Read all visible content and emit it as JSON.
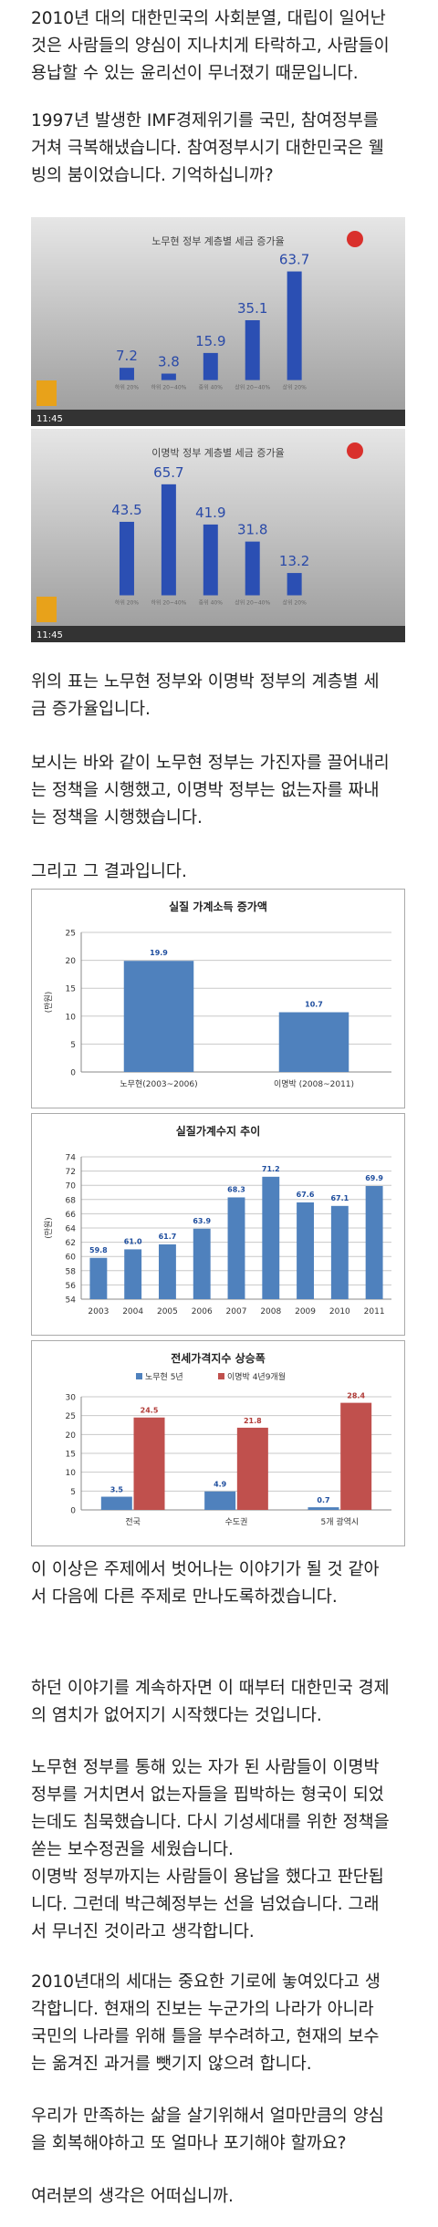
{
  "paragraphs": [
    [
      "2010년 대의 대한민국의 사회분열, 대립이 일어난",
      "것은 사람들의 양심이 지나치게 타락하고, 사람들이",
      "용납할 수 있는 윤리선이 무너졌기 때문입니다."
    ],
    [
      "1997년 발생한 IMF경제위기를 국민, 참여정부를",
      "거쳐 극복해냈습니다. 참여정부시기 대한민국은 웰",
      "빙의 붐이었습니다. 기억하십니까?"
    ],
    [
      "위의 표는 노무현 정부와 이명박 정부의 계층별 세",
      "금 증가율입니다."
    ],
    [
      "보시는 바와 같이 노무현 정부는 가진자를 끌어내리",
      "는 정책을 시행했고, 이명박 정부는 없는자를 짜내",
      "는 정책을 시행했습니다."
    ],
    [
      "그리고 그 결과입니다."
    ],
    [
      "이 이상은 주제에서 벗어나는 이야기가 될 것 같아",
      "서 다음에 다른 주제로 만나도록하겠습니다."
    ],
    [
      "하던 이야기를 계속하자면 이 때부터 대한민국 경제",
      "의 염치가 없어지기 시작했다는 것입니다."
    ],
    [
      "노무현 정부를 통해 있는 자가 된 사람들이 이명박",
      "정부를 거치면서 없는자들을 핍박하는 형국이 되었",
      "는데도 침묵했습니다. 다시 기성세대를 위한 정책을",
      "쏟는 보수정권을 세웠습니다.",
      "이명박 정부까지는 사람들이 용납을 했다고 판단됩",
      "니다. 그런데 박근혜정부는 선을 넘었습니다. 그래",
      "서 무너진 것이라고 생각합니다."
    ],
    [
      "2010년대의 세대는 중요한 기로에 놓여있다고 생",
      "각합니다. 현재의 진보는 누군가의 나라가 아니라",
      "국민의 나라를 위해 틀을 부수려하고, 현재의 보수",
      "는 옮겨진 과거를 뺏기지 않으려 합니다."
    ],
    [
      "우리가 만족하는 삶을 살기위해서 얼마만큼의 양심",
      "을 회복해야하고 또 얼마나 포기해야 할까요?"
    ],
    [
      "여러분의 생각은 어떠십니까."
    ]
  ],
  "charts": [
    {
      "type": "bar",
      "style": "tv",
      "title": "노무현 정부 계층별 세금 증가율",
      "ticker": "11:45",
      "categories": [
        "하위 20%",
        "하위 20~40%",
        "중위 40%",
        "상위 20~40%",
        "상위 20%"
      ],
      "values": [
        7.2,
        3.8,
        15.9,
        35.1,
        63.7
      ],
      "color": "#2b4fb3"
    },
    {
      "type": "bar",
      "style": "tv",
      "title": "이명박 정부 계층별 세금 증가율",
      "ticker": "11:45",
      "categories": [
        "하위 20%",
        "하위 20~40%",
        "중위 40%",
        "상위 20~40%",
        "상위 20%"
      ],
      "values": [
        43.5,
        65.7,
        41.9,
        31.8,
        13.2
      ],
      "color": "#2b4fb3"
    },
    {
      "type": "bar",
      "style": "office",
      "title": "실질 가계소득 증가액",
      "ylabel": "(만원)",
      "categories": [
        "노무현(2003~2006)",
        "이명박 (2008~2011)"
      ],
      "values": [
        19.9,
        10.7
      ],
      "color": "#4f81bd",
      "ylim": [
        0,
        25
      ],
      "yticks": [
        0,
        5,
        10,
        15,
        20,
        25
      ],
      "grid": true
    },
    {
      "type": "bar",
      "style": "office",
      "title": "실질가계수지 추이",
      "ylabel": "(만원)",
      "categories": [
        "2003",
        "2004",
        "2005",
        "2006",
        "2007",
        "2008",
        "2009",
        "2010",
        "2011"
      ],
      "values": [
        59.8,
        61,
        61.7,
        63.9,
        68.3,
        71.2,
        67.6,
        67.1,
        69.9
      ],
      "value_labels": [
        "59.8",
        "61.0",
        "61.7",
        "63.9",
        "68.3",
        "71.2",
        "67.6",
        "67.1",
        "69.9"
      ],
      "color": "#4f81bd",
      "ylim": [
        54,
        74
      ],
      "yticks": [
        54,
        56,
        58,
        60,
        62,
        64,
        66,
        68,
        70,
        72,
        74
      ],
      "grid": true
    },
    {
      "type": "grouped_bar",
      "style": "office",
      "title": "전세가격지수 상승폭",
      "categories": [
        "전국",
        "수도권",
        "5개 광역시"
      ],
      "series": [
        {
          "name": "노무현 5년",
          "color": "#4f81bd",
          "values": [
            3.5,
            4.9,
            0.7
          ]
        },
        {
          "name": "이명박 4년9개월",
          "color": "#c0504d",
          "values": [
            24.5,
            21.8,
            28.4
          ]
        }
      ],
      "ylim": [
        0,
        30
      ],
      "yticks": [
        0,
        5,
        10,
        15,
        20,
        25,
        30
      ],
      "grid": true
    }
  ]
}
